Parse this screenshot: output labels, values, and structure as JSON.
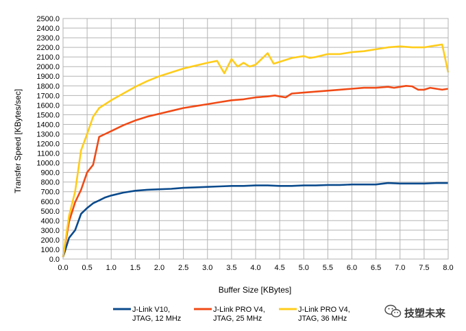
{
  "chart_data": {
    "type": "line",
    "xlabel": "Buffer Size [KBytes]",
    "ylabel": "Transfer Speed [KBytes/sec]",
    "xlim": [
      0,
      8
    ],
    "ylim": [
      0,
      2500
    ],
    "xticks": [
      "0.0",
      "0.5",
      "1.0",
      "1.5",
      "2.0",
      "2.5",
      "3.0",
      "3.5",
      "4.0",
      "4.5",
      "5.0",
      "5.5",
      "6.0",
      "6.5",
      "7.0",
      "7.5",
      "8.0"
    ],
    "yticks": [
      "0.0",
      "100.0",
      "200.0",
      "300.0",
      "400.0",
      "500.0",
      "600.0",
      "700.0",
      "800.0",
      "900.0",
      "1000.0",
      "1100.0",
      "1200.0",
      "1300.0",
      "1400.0",
      "1500.0",
      "1600.0",
      "1700.0",
      "1800.0",
      "1900.0",
      "2000.0",
      "2100.0",
      "2200.0",
      "2300.0",
      "2400.0",
      "2500.0"
    ],
    "grid": true,
    "legend_position": "bottom",
    "series": [
      {
        "name": "J-Link V10, JTAG, 12 MHz",
        "label_lines": [
          "J-Link V10,",
          "JTAG, 12 MHz"
        ],
        "color": "#0a4a8c",
        "x": [
          0,
          0.125,
          0.25,
          0.375,
          0.5,
          0.625,
          0.75,
          0.875,
          1,
          1.25,
          1.5,
          1.75,
          2,
          2.25,
          2.5,
          2.75,
          3,
          3.25,
          3.5,
          3.75,
          4,
          4.25,
          4.5,
          4.75,
          5,
          5.25,
          5.5,
          5.75,
          6,
          6.25,
          6.5,
          6.75,
          7,
          7.25,
          7.5,
          7.75,
          8
        ],
        "y": [
          20,
          220,
          300,
          470,
          530,
          580,
          610,
          640,
          660,
          690,
          710,
          720,
          725,
          730,
          740,
          745,
          750,
          755,
          760,
          760,
          765,
          765,
          760,
          760,
          765,
          765,
          770,
          770,
          775,
          775,
          775,
          790,
          785,
          785,
          785,
          790,
          790
        ]
      },
      {
        "name": "J-Link PRO V4, JTAG, 25 MHz",
        "label_lines": [
          "J-Link PRO V4,",
          "JTAG, 25 MHz"
        ],
        "color": "#f04a16",
        "x": [
          0,
          0.125,
          0.25,
          0.375,
          0.5,
          0.625,
          0.75,
          0.875,
          1,
          1.25,
          1.5,
          1.75,
          2,
          2.25,
          2.5,
          2.75,
          3,
          3.25,
          3.5,
          3.75,
          4,
          4.25,
          4.4,
          4.5,
          4.625,
          4.75,
          5,
          5.25,
          5.5,
          5.75,
          6,
          6.25,
          6.5,
          6.75,
          6.875,
          7,
          7.125,
          7.25,
          7.375,
          7.5,
          7.625,
          7.75,
          7.875,
          8
        ],
        "y": [
          20,
          390,
          590,
          720,
          900,
          980,
          1270,
          1300,
          1330,
          1390,
          1440,
          1480,
          1510,
          1540,
          1570,
          1590,
          1610,
          1630,
          1650,
          1660,
          1680,
          1690,
          1700,
          1690,
          1680,
          1720,
          1730,
          1740,
          1750,
          1760,
          1770,
          1780,
          1780,
          1790,
          1780,
          1790,
          1800,
          1795,
          1760,
          1760,
          1780,
          1770,
          1760,
          1770
        ]
      },
      {
        "name": "J-Link PRO V4, JTAG, 36 MHz",
        "label_lines": [
          "J-Link PRO V4,",
          "JTAG, 36 MHz"
        ],
        "color": "#ffcc1a",
        "x": [
          0,
          0.125,
          0.25,
          0.375,
          0.5,
          0.625,
          0.75,
          0.875,
          1,
          1.25,
          1.5,
          1.75,
          2,
          2.25,
          2.5,
          2.75,
          3,
          3.2,
          3.35,
          3.5,
          3.625,
          3.75,
          3.875,
          4,
          4.125,
          4.25,
          4.375,
          4.5,
          4.75,
          5,
          5.125,
          5.25,
          5.5,
          5.75,
          6,
          6.25,
          6.5,
          6.75,
          7,
          7.25,
          7.5,
          7.625,
          7.75,
          7.875,
          8
        ],
        "y": [
          20,
          450,
          700,
          1130,
          1300,
          1480,
          1570,
          1610,
          1650,
          1720,
          1790,
          1850,
          1900,
          1940,
          1980,
          2010,
          2040,
          2060,
          1930,
          2080,
          2000,
          2040,
          2000,
          2020,
          2080,
          2140,
          2030,
          2050,
          2090,
          2110,
          2090,
          2100,
          2130,
          2130,
          2150,
          2160,
          2180,
          2200,
          2210,
          2200,
          2200,
          2210,
          2220,
          2230,
          1940
        ]
      }
    ]
  },
  "watermark": {
    "text": "技塑未来",
    "icon": "wechat-icon"
  }
}
